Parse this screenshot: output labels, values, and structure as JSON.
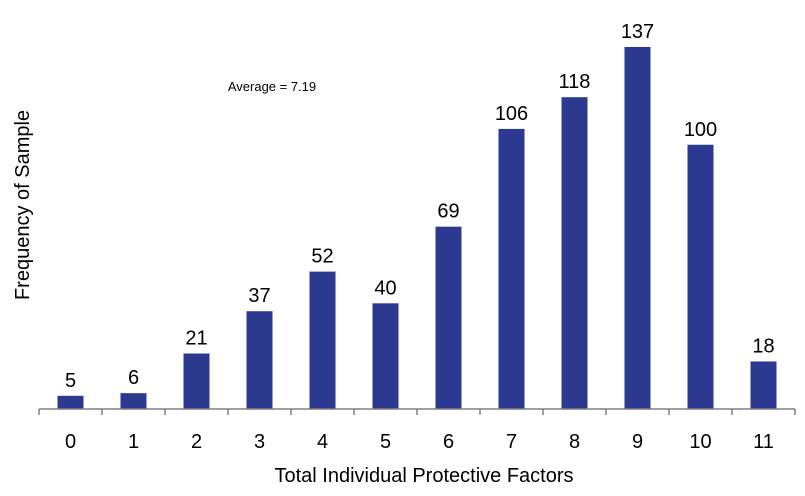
{
  "chart_data": {
    "type": "bar",
    "categories": [
      "0",
      "1",
      "2",
      "3",
      "4",
      "5",
      "6",
      "7",
      "8",
      "9",
      "10",
      "11"
    ],
    "values": [
      5,
      6,
      21,
      37,
      52,
      40,
      69,
      106,
      118,
      137,
      100,
      18
    ],
    "xlabel": "Total Individual Protective Factors",
    "ylabel": "Frequency of Sample",
    "annotation": "Average = 7.19",
    "ylim": [
      0,
      137
    ],
    "grid": false,
    "legend": "none",
    "bar_color": "#2B3990"
  }
}
